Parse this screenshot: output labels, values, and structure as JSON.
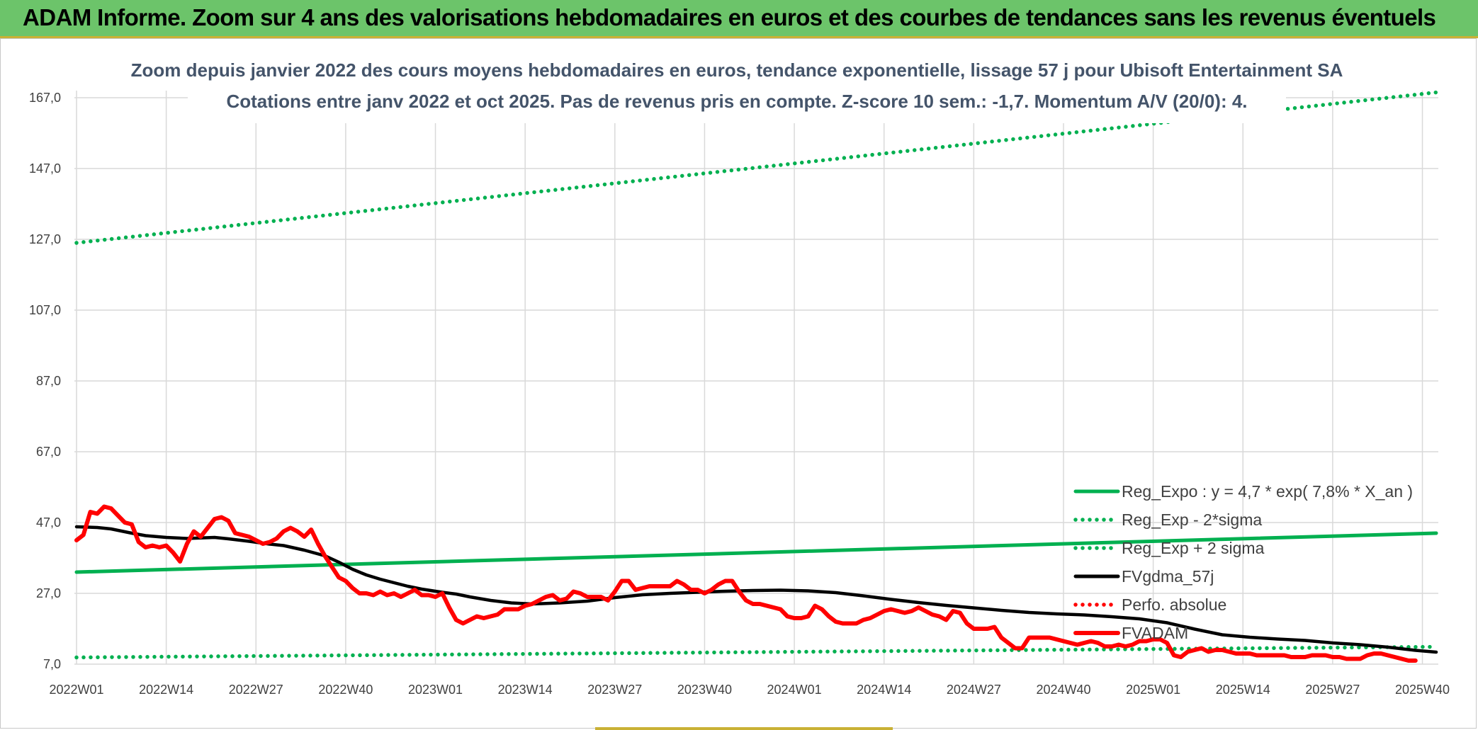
{
  "banner": {
    "title": "ADAM Informe. Zoom sur 4 ans des valorisations hebdomadaires en euros et des courbes de tendances sans les revenus éventuels"
  },
  "colors": {
    "banner_bg": "#6cc46a",
    "regression": "#00b050",
    "moving_average": "#000000",
    "price": "#ff0000",
    "title_text": "#44546a"
  },
  "chart_data": {
    "type": "line",
    "title": "Zoom depuis janvier 2022 des cours moyens hebdomadaires en euros, tendance exponentielle, lissage 57 j pour Ubisoft Entertainment SA",
    "subtitle": "Cotations entre janv 2022 et oct 2025. Pas de revenus pris en compte. Z-score 10 sem.: -1,7. Momentum A/V (20/0): 4.",
    "xlabel": "",
    "ylabel": "",
    "ylim": [
      7,
      167
    ],
    "yticks": [
      "167,0",
      "147,0",
      "127,0",
      "107,0",
      "87,0",
      "67,0",
      "47,0",
      "27,0",
      "7,0"
    ],
    "x_tick_labels": [
      "2022W01",
      "2022W14",
      "2022W27",
      "2022W40",
      "2023W01",
      "2023W14",
      "2023W27",
      "2023W40",
      "2024W01",
      "2024W14",
      "2024W27",
      "2024W40",
      "2025W01",
      "2025W14",
      "2025W27",
      "2025W40"
    ],
    "weeks_total": 197,
    "grid": true,
    "legend_position": "bottom-right",
    "series": [
      {
        "name": "Reg_Expo : y = 4,7 * exp( 7,8% *  X_an )",
        "style": "solid",
        "color": "#00b050",
        "points": [
          [
            0,
            33.0
          ],
          [
            197,
            44.0
          ]
        ]
      },
      {
        "name": "Reg_Exp - 2*sigma",
        "style": "dotted",
        "color": "#00b050",
        "points": [
          [
            0,
            8.9
          ],
          [
            197,
            11.9
          ]
        ]
      },
      {
        "name": "Reg_Exp + 2 sigma",
        "style": "dotted",
        "color": "#00b050",
        "points": [
          [
            0,
            126.0
          ],
          [
            197,
            168.5
          ]
        ]
      },
      {
        "name": "FVgdma_57j",
        "style": "solid",
        "color": "#000000",
        "points": [
          [
            0,
            45.8
          ],
          [
            3,
            45.6
          ],
          [
            5,
            45.2
          ],
          [
            8,
            44.0
          ],
          [
            10,
            43.3
          ],
          [
            13,
            42.8
          ],
          [
            16,
            42.5
          ],
          [
            20,
            42.8
          ],
          [
            22,
            42.4
          ],
          [
            25,
            41.7
          ],
          [
            28,
            40.9
          ],
          [
            30,
            40.5
          ],
          [
            33,
            39.2
          ],
          [
            36,
            37.6
          ],
          [
            38,
            35.8
          ],
          [
            40,
            33.8
          ],
          [
            42,
            32.2
          ],
          [
            44,
            31.0
          ],
          [
            46,
            30.0
          ],
          [
            48,
            29.0
          ],
          [
            50,
            28.2
          ],
          [
            53,
            27.3
          ],
          [
            55,
            26.8
          ],
          [
            57,
            26.0
          ],
          [
            60,
            25.0
          ],
          [
            63,
            24.3
          ],
          [
            66,
            24.0
          ],
          [
            70,
            24.3
          ],
          [
            74,
            24.8
          ],
          [
            78,
            25.8
          ],
          [
            82,
            26.6
          ],
          [
            86,
            27.0
          ],
          [
            90,
            27.3
          ],
          [
            94,
            27.6
          ],
          [
            98,
            27.8
          ],
          [
            102,
            27.9
          ],
          [
            106,
            27.7
          ],
          [
            110,
            27.2
          ],
          [
            114,
            26.3
          ],
          [
            118,
            25.3
          ],
          [
            122,
            24.4
          ],
          [
            126,
            23.6
          ],
          [
            130,
            22.9
          ],
          [
            134,
            22.2
          ],
          [
            138,
            21.6
          ],
          [
            142,
            21.2
          ],
          [
            146,
            20.9
          ],
          [
            150,
            20.4
          ],
          [
            154,
            19.8
          ],
          [
            158,
            18.7
          ],
          [
            162,
            16.9
          ],
          [
            166,
            15.3
          ],
          [
            170,
            14.6
          ],
          [
            174,
            14.1
          ],
          [
            178,
            13.7
          ],
          [
            182,
            13.0
          ],
          [
            186,
            12.5
          ],
          [
            190,
            11.8
          ],
          [
            194,
            10.9
          ],
          [
            197,
            10.4
          ]
        ]
      },
      {
        "name": "Perfo. absolue",
        "style": "dotted",
        "color": "#ff0000",
        "points": []
      },
      {
        "name": "FVADAM",
        "style": "solid",
        "color": "#ff0000",
        "points": [
          [
            0,
            42.0
          ],
          [
            1,
            43.5
          ],
          [
            2,
            50.0
          ],
          [
            3,
            49.5
          ],
          [
            4,
            51.5
          ],
          [
            5,
            51.0
          ],
          [
            6,
            49.0
          ],
          [
            7,
            47.0
          ],
          [
            8,
            46.5
          ],
          [
            9,
            41.5
          ],
          [
            10,
            40.0
          ],
          [
            11,
            40.5
          ],
          [
            12,
            40.0
          ],
          [
            13,
            40.5
          ],
          [
            14,
            38.5
          ],
          [
            15,
            36.0
          ],
          [
            16,
            41.0
          ],
          [
            17,
            44.5
          ],
          [
            18,
            43.0
          ],
          [
            19,
            45.5
          ],
          [
            20,
            48.0
          ],
          [
            21,
            48.5
          ],
          [
            22,
            47.5
          ],
          [
            23,
            44.0
          ],
          [
            24,
            43.5
          ],
          [
            25,
            43.0
          ],
          [
            26,
            42.0
          ],
          [
            27,
            41.0
          ],
          [
            28,
            41.5
          ],
          [
            29,
            42.5
          ],
          [
            30,
            44.5
          ],
          [
            31,
            45.5
          ],
          [
            32,
            44.5
          ],
          [
            33,
            43.0
          ],
          [
            34,
            45.0
          ],
          [
            35,
            41.0
          ],
          [
            36,
            37.5
          ],
          [
            37,
            34.5
          ],
          [
            38,
            31.5
          ],
          [
            39,
            30.5
          ],
          [
            40,
            28.5
          ],
          [
            41,
            27.0
          ],
          [
            42,
            27.0
          ],
          [
            43,
            26.5
          ],
          [
            44,
            27.5
          ],
          [
            45,
            26.5
          ],
          [
            46,
            27.0
          ],
          [
            47,
            26.0
          ],
          [
            48,
            27.0
          ],
          [
            49,
            28.0
          ],
          [
            50,
            26.5
          ],
          [
            51,
            26.5
          ],
          [
            52,
            26.0
          ],
          [
            53,
            27.0
          ],
          [
            54,
            23.0
          ],
          [
            55,
            19.5
          ],
          [
            56,
            18.5
          ],
          [
            57,
            19.5
          ],
          [
            58,
            20.5
          ],
          [
            59,
            20.0
          ],
          [
            60,
            20.5
          ],
          [
            61,
            21.0
          ],
          [
            62,
            22.5
          ],
          [
            63,
            22.5
          ],
          [
            64,
            22.5
          ],
          [
            65,
            23.5
          ],
          [
            66,
            24.0
          ],
          [
            67,
            25.0
          ],
          [
            68,
            26.0
          ],
          [
            69,
            26.5
          ],
          [
            70,
            25.0
          ],
          [
            71,
            25.5
          ],
          [
            72,
            27.5
          ],
          [
            73,
            27.0
          ],
          [
            74,
            26.0
          ],
          [
            75,
            26.0
          ],
          [
            76,
            26.0
          ],
          [
            77,
            25.0
          ],
          [
            78,
            27.5
          ],
          [
            79,
            30.5
          ],
          [
            80,
            30.5
          ],
          [
            81,
            28.0
          ],
          [
            82,
            28.5
          ],
          [
            83,
            29.0
          ],
          [
            84,
            29.0
          ],
          [
            85,
            29.0
          ],
          [
            86,
            29.0
          ],
          [
            87,
            30.5
          ],
          [
            88,
            29.5
          ],
          [
            89,
            28.0
          ],
          [
            90,
            28.0
          ],
          [
            91,
            27.0
          ],
          [
            92,
            28.0
          ],
          [
            93,
            29.5
          ],
          [
            94,
            30.5
          ],
          [
            95,
            30.5
          ],
          [
            96,
            27.5
          ],
          [
            97,
            25.0
          ],
          [
            98,
            24.0
          ],
          [
            99,
            24.0
          ],
          [
            100,
            23.5
          ],
          [
            101,
            23.0
          ],
          [
            102,
            22.5
          ],
          [
            103,
            20.5
          ],
          [
            104,
            20.0
          ],
          [
            105,
            20.0
          ],
          [
            106,
            20.5
          ],
          [
            107,
            23.5
          ],
          [
            108,
            22.5
          ],
          [
            109,
            20.5
          ],
          [
            110,
            19.0
          ],
          [
            111,
            18.5
          ],
          [
            112,
            18.5
          ],
          [
            113,
            18.5
          ],
          [
            114,
            19.5
          ],
          [
            115,
            20.0
          ],
          [
            116,
            21.0
          ],
          [
            117,
            22.0
          ],
          [
            118,
            22.5
          ],
          [
            119,
            22.0
          ],
          [
            120,
            21.5
          ],
          [
            121,
            22.0
          ],
          [
            122,
            23.0
          ],
          [
            123,
            22.0
          ],
          [
            124,
            21.0
          ],
          [
            125,
            20.5
          ],
          [
            126,
            19.5
          ],
          [
            127,
            22.0
          ],
          [
            128,
            21.5
          ],
          [
            129,
            18.5
          ],
          [
            130,
            17.0
          ],
          [
            131,
            17.0
          ],
          [
            132,
            17.0
          ],
          [
            133,
            17.5
          ],
          [
            134,
            14.5
          ],
          [
            135,
            13.0
          ],
          [
            136,
            11.5
          ],
          [
            137,
            11.5
          ],
          [
            138,
            14.5
          ],
          [
            139,
            14.5
          ],
          [
            140,
            14.5
          ],
          [
            141,
            14.5
          ],
          [
            142,
            14.0
          ],
          [
            143,
            13.5
          ],
          [
            144,
            13.0
          ],
          [
            145,
            12.5
          ],
          [
            146,
            13.0
          ],
          [
            147,
            13.5
          ],
          [
            148,
            13.0
          ],
          [
            149,
            12.0
          ],
          [
            150,
            12.0
          ],
          [
            151,
            12.5
          ],
          [
            152,
            12.0
          ],
          [
            153,
            12.5
          ],
          [
            154,
            13.5
          ],
          [
            155,
            13.5
          ],
          [
            156,
            14.0
          ],
          [
            157,
            14.0
          ],
          [
            158,
            13.0
          ],
          [
            159,
            9.5
          ],
          [
            160,
            9.0
          ],
          [
            161,
            10.5
          ],
          [
            162,
            11.0
          ],
          [
            163,
            11.5
          ],
          [
            164,
            10.5
          ],
          [
            165,
            11.0
          ],
          [
            166,
            11.0
          ],
          [
            167,
            10.5
          ],
          [
            168,
            10.0
          ],
          [
            169,
            10.0
          ],
          [
            170,
            10.0
          ],
          [
            171,
            9.5
          ],
          [
            172,
            9.5
          ],
          [
            173,
            9.5
          ],
          [
            174,
            9.5
          ],
          [
            175,
            9.5
          ],
          [
            176,
            9.0
          ],
          [
            177,
            9.0
          ],
          [
            178,
            9.0
          ],
          [
            179,
            9.5
          ],
          [
            180,
            9.5
          ],
          [
            181,
            9.5
          ],
          [
            182,
            9.0
          ],
          [
            183,
            9.0
          ],
          [
            184,
            8.5
          ],
          [
            185,
            8.5
          ],
          [
            186,
            8.5
          ],
          [
            187,
            9.5
          ],
          [
            188,
            10.0
          ],
          [
            189,
            10.0
          ],
          [
            190,
            9.5
          ],
          [
            191,
            9.0
          ],
          [
            192,
            8.5
          ],
          [
            193,
            8.0
          ],
          [
            194,
            8.0
          ]
        ]
      }
    ]
  }
}
